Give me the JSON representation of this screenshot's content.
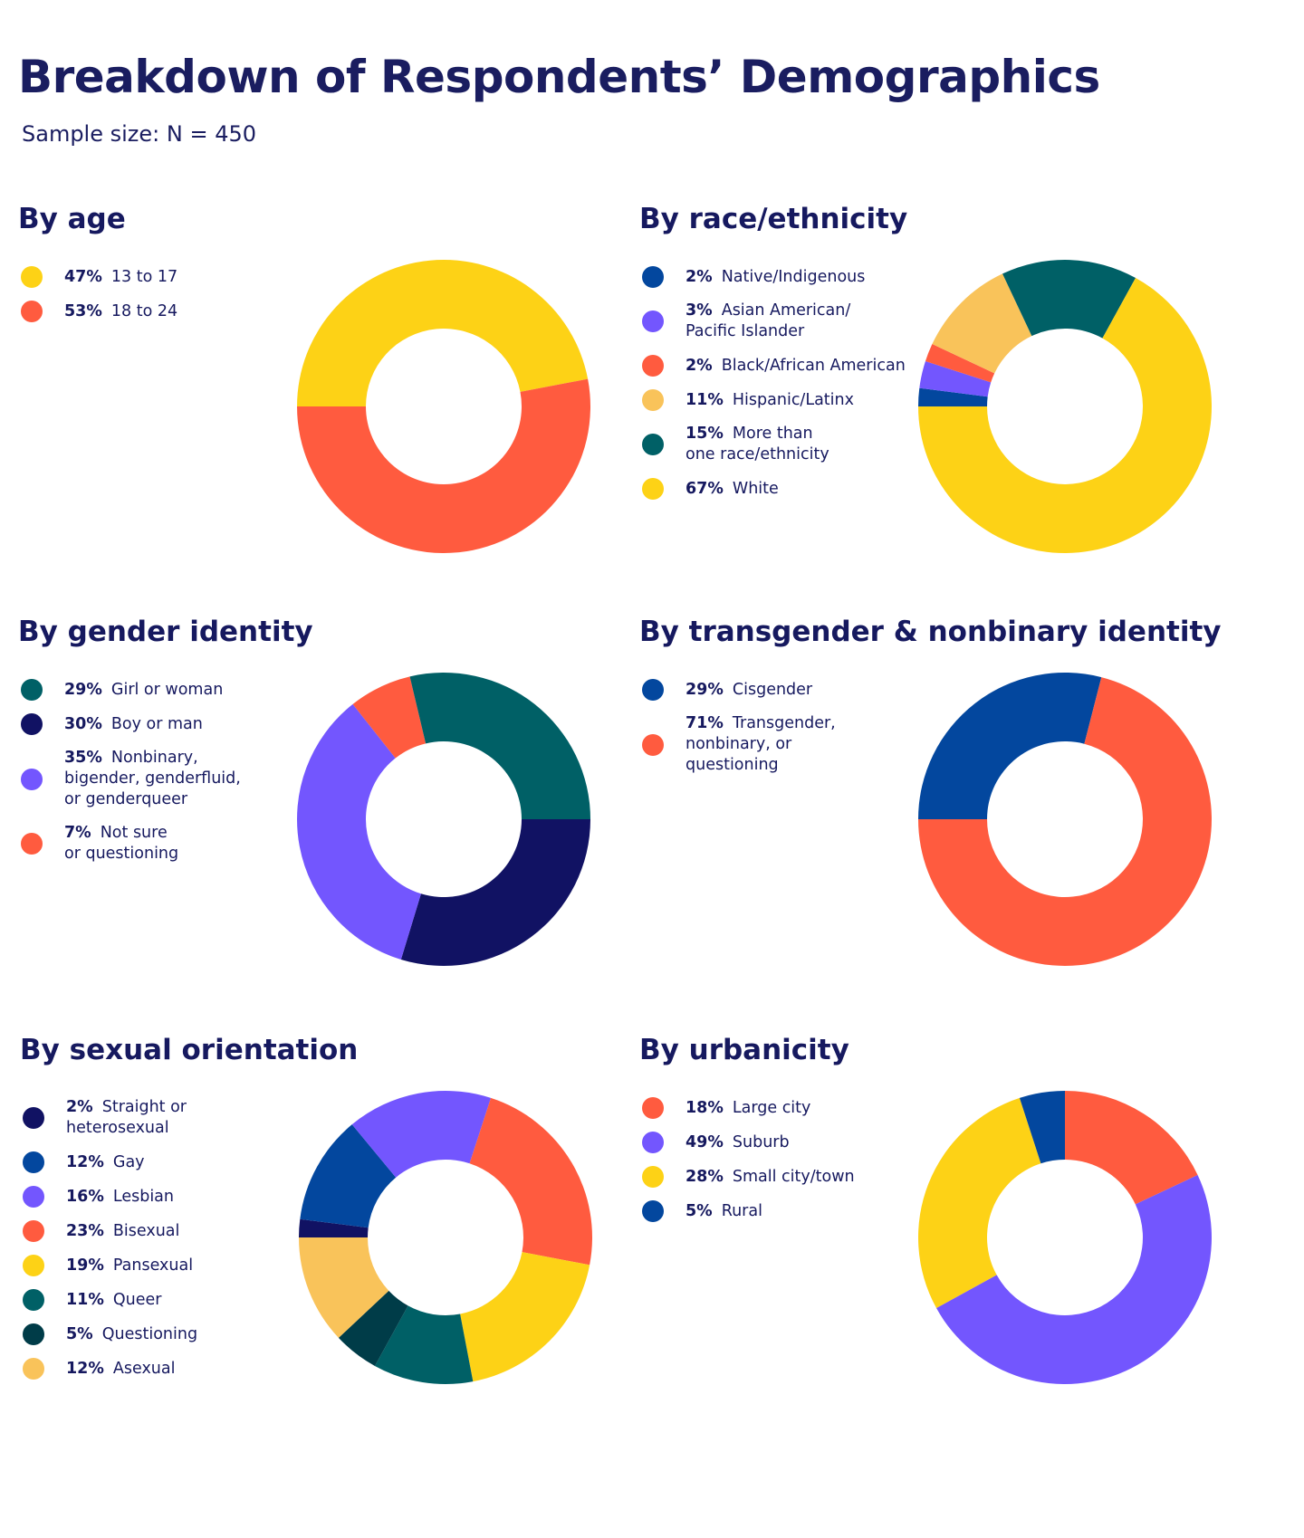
{
  "title": "Breakdown of Respondents’ Demographics",
  "subtitle": "Sample size: N = 450",
  "colors": {
    "yellow": "#fdd216",
    "orange": "#ff5b3f",
    "navy": "#111263",
    "blue": "#03479e",
    "purple": "#7356fe",
    "teal": "#006066",
    "dark_teal": "#003c48",
    "light_orange": "#f9c35a"
  },
  "chart_data": [
    {
      "type": "pie",
      "title": "By age",
      "start_angle": 180,
      "slices": [
        {
          "pct_label": "47%",
          "label": "13 to 17",
          "value": 47,
          "color": "#fdd216"
        },
        {
          "pct_label": "53%",
          "label": "18 to 24",
          "value": 53,
          "color": "#ff5b3f"
        }
      ]
    },
    {
      "type": "pie",
      "title": "By race/ethnicity",
      "start_angle": 180,
      "slices": [
        {
          "pct_label": "2%",
          "label": "Native/Indigenous",
          "value": 2,
          "color": "#03479e"
        },
        {
          "pct_label": "3%",
          "label": "Asian American/\nPacific Islander",
          "value": 3,
          "color": "#7356fe"
        },
        {
          "pct_label": "2%",
          "label": "Black/African American",
          "value": 2,
          "color": "#ff5b3f"
        },
        {
          "pct_label": "11%",
          "label": "Hispanic/Latinx",
          "value": 11,
          "color": "#f9c35a"
        },
        {
          "pct_label": "15%",
          "label": "More than\none race/ethnicity",
          "value": 15,
          "color": "#006066"
        },
        {
          "pct_label": "67%",
          "label": "White",
          "value": 67,
          "color": "#fdd216"
        }
      ]
    },
    {
      "type": "pie",
      "title": "By gender identity",
      "start_angle": 0,
      "slice_order": [
        1,
        2,
        3,
        0
      ],
      "slices": [
        {
          "pct_label": "29%",
          "label": "Girl or woman",
          "value": 29,
          "color": "#006066"
        },
        {
          "pct_label": "30%",
          "label": "Boy or man",
          "value": 30,
          "color": "#111263"
        },
        {
          "pct_label": "35%",
          "label": "Nonbinary,\nbigender, genderfluid,\nor genderqueer",
          "value": 35,
          "color": "#7356fe"
        },
        {
          "pct_label": "7%",
          "label": "Not sure\nor questioning",
          "value": 7,
          "color": "#ff5b3f"
        }
      ]
    },
    {
      "type": "pie",
      "title": "By transgender & nonbinary identity",
      "start_angle": 180,
      "slices": [
        {
          "pct_label": "29%",
          "label": "Cisgender",
          "value": 29,
          "color": "#03479e"
        },
        {
          "pct_label": "71%",
          "label": "Transgender,\nnonbinary, or\nquestioning",
          "value": 71,
          "color": "#ff5b3f"
        }
      ]
    },
    {
      "type": "pie",
      "title": "By sexual orientation",
      "start_angle": 180,
      "slice_order": [
        0,
        1,
        2,
        3,
        4,
        5,
        6,
        7
      ],
      "slices": [
        {
          "pct_label": "2%",
          "label": "Straight or heterosexual",
          "value": 2,
          "color": "#111263"
        },
        {
          "pct_label": "12%",
          "label": "Gay",
          "value": 12,
          "color": "#03479e"
        },
        {
          "pct_label": "16%",
          "label": "Lesbian",
          "value": 16,
          "color": "#7356fe"
        },
        {
          "pct_label": "23%",
          "label": "Bisexual",
          "value": 23,
          "color": "#ff5b3f"
        },
        {
          "pct_label": "19%",
          "label": "Pansexual",
          "value": 19,
          "color": "#fdd216"
        },
        {
          "pct_label": "11%",
          "label": "Queer",
          "value": 11,
          "color": "#006066"
        },
        {
          "pct_label": "5%",
          "label": "Questioning",
          "value": 5,
          "color": "#003c48"
        },
        {
          "pct_label": "12%",
          "label": "Asexual",
          "value": 12,
          "color": "#f9c35a"
        }
      ]
    },
    {
      "type": "pie",
      "title": "By urbanicity",
      "start_angle": 90,
      "slice_order": [
        0,
        1,
        2,
        3
      ],
      "slices": [
        {
          "pct_label": "18%",
          "label": "Large city",
          "value": 18,
          "color": "#ff5b3f"
        },
        {
          "pct_label": "49%",
          "label": "Suburb",
          "value": 49,
          "color": "#7356fe"
        },
        {
          "pct_label": "28%",
          "label": "Small city/town",
          "value": 28,
          "color": "#fdd216"
        },
        {
          "pct_label": "5%",
          "label": "Rural",
          "value": 5,
          "color": "#03479e"
        }
      ]
    }
  ]
}
